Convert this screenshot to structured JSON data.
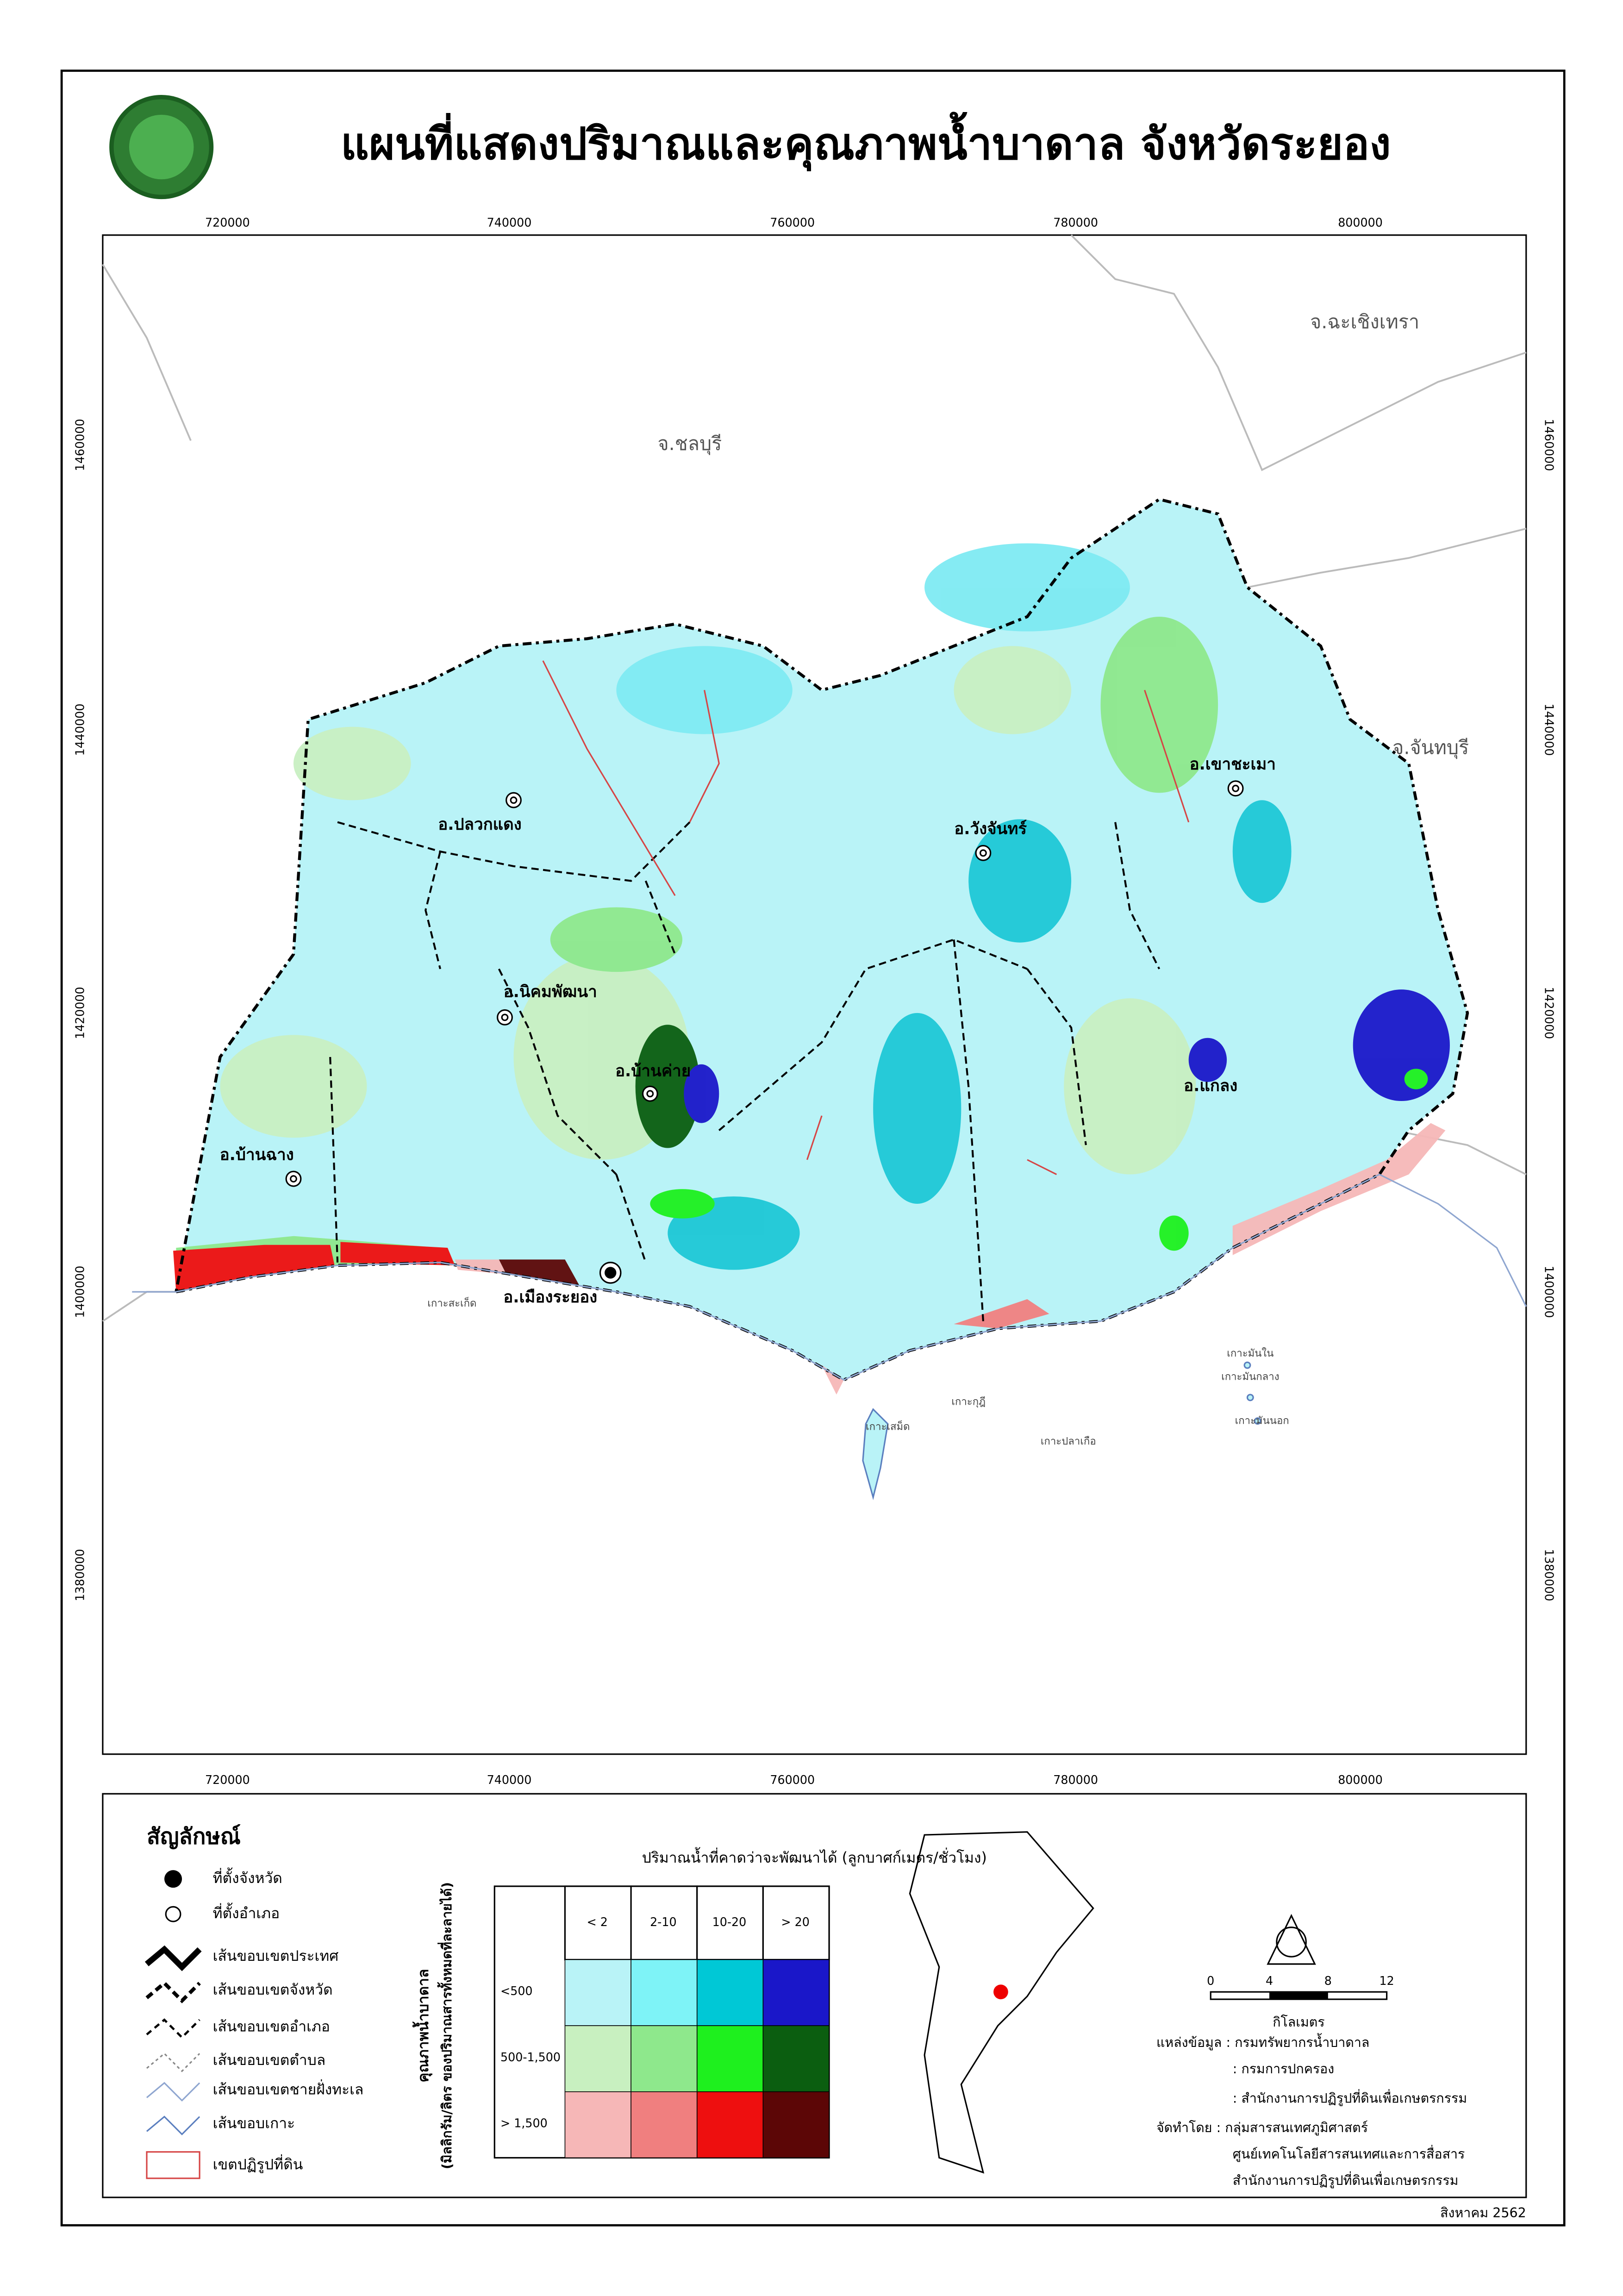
{
  "header": {
    "title": "แผนที่แสดงปริมาณและคุณภาพน้ำบาดาล จังหวัดระยอง"
  },
  "map": {
    "x_coords": [
      "720000",
      "740000",
      "760000",
      "780000",
      "800000"
    ],
    "y_coords": [
      "1460000",
      "1440000",
      "1420000",
      "1400000",
      "1380000"
    ],
    "provinces": [
      "จ.ชลบุรี",
      "จ.ฉะเชิงเทรา",
      "จ.จันทบุรี"
    ],
    "districts": [
      "อ.ปลวกแดง",
      "อ.วังจันทร์",
      "อ.เขาชะเมา",
      "อ.นิคมพัฒนา",
      "อ.บ้านค่าย",
      "อ.บ้านฉาง",
      "อ.เมืองระยอง",
      "อ.แกลง"
    ],
    "islands": [
      "เกาะสะเก็ด",
      "เกาะกุฎี",
      "เกาะเสม็ด",
      "เกาะปลาเกือ",
      "เกาะมันใน",
      "เกาะมันกลาง",
      "เกาะมันนอก"
    ]
  },
  "legend": {
    "title": "สัญลักษณ์",
    "items": [
      "ที่ตั้งจังหวัด",
      "ที่ตั้งอำเภอ",
      "เส้นขอบเขตประเทศ",
      "เส้นขอบเขตจังหวัด",
      "เส้นขอบเขตอำเภอ",
      "เส้นขอบเขตตำบล",
      "เส้นขอบเขตชายฝั่งทะเล",
      "เส้นขอบเกาะ",
      "เขตปฏิรูปที่ดิน"
    ]
  },
  "matrix": {
    "title": "ปริมาณน้ำที่คาดว่าจะพัฒนาได้ (ลูกบาศก์เมตร/ชั่วโมง)",
    "columns": [
      "< 2",
      "2-10",
      "10-20",
      "> 20"
    ],
    "rows": [
      "<500",
      "500-1,500",
      "> 1,500"
    ],
    "row_title": "คุณภาพน้ำบาดาล",
    "row_subtitle": "(มิลลิกรัม/ลิตร ของปริมาณสารทั้งหมดที่ละลายได้)"
  },
  "scale": {
    "ticks": [
      "0",
      "4",
      "8",
      "12"
    ],
    "unit": "กิโลเมตร"
  },
  "sources": [
    "แหล่งข้อมูล : กรมทรัพยากรน้ำบาดาล",
    ": กรมการปกครอง",
    ": สำนักงานการปฏิรูปที่ดินเพื่อเกษตรกรรม",
    "จัดทำโดย : กลุ่มสารสนเทศภูมิศาสตร์",
    "ศูนย์เทคโนโลยีสารสนเทศและการสื่อสาร",
    "สำนักงานการปฏิรูปที่ดินเพื่อเกษตรกรรม"
  ],
  "date": "สิงหาคม 2562"
}
